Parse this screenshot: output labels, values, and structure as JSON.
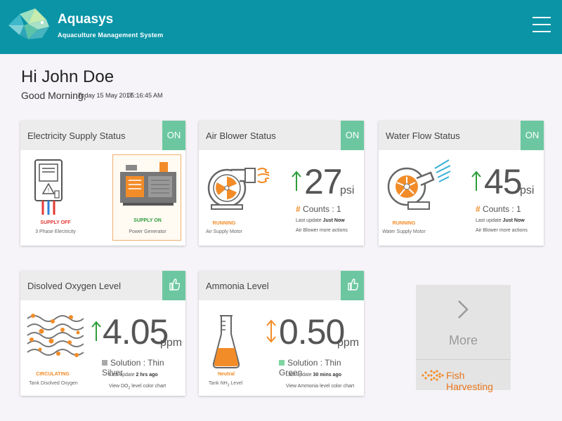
{
  "app": {
    "name": "Aquasys",
    "subtitle": "Aquaculture Management System"
  },
  "greeting": {
    "hello": "Hi John Doe",
    "good": "Good Morning,",
    "date": "Today 15 May 2017",
    "time": "05:16:45 AM"
  },
  "electricity": {
    "title": "Electricity Supply Status",
    "badge": "ON",
    "left_state": "SUPPLY OFF",
    "left_label": "3 Phase Electricity",
    "right_state": "SUPPLY ON",
    "right_label": "Power Generator"
  },
  "air_blower": {
    "title": "Air Blower Status",
    "badge": "ON",
    "value": "27",
    "unit": "psi",
    "counts": "Counts : 1",
    "last_update_label": "Last update",
    "last_update": "Just Now",
    "more": "Air Blower more actions",
    "state": "RUNNING",
    "label": "Air Supply Motor"
  },
  "water_flow": {
    "title": "Water Flow Status",
    "badge": "ON",
    "value": "45",
    "unit": "psi",
    "counts": "Counts : 1",
    "last_update_label": "Last update",
    "last_update": "Just Now",
    "more": "Air Blower more actions",
    "state": "RUNNING",
    "label": "Water Supply Motor"
  },
  "oxygen": {
    "title": "Disolved Oxygen Level",
    "value": "4.05",
    "unit": "ppm",
    "solution": "Solution : Thin Silver",
    "last_update_label": "Last update",
    "last_update": "2 hrs ago",
    "chart_link_pre": "View DO",
    "chart_link_sub": "2",
    "chart_link_post": " level color chart",
    "state": "CIRCULATING",
    "label": "Tank Disolved Oxygen",
    "solution_color": "#aaaaaa"
  },
  "ammonia": {
    "title": "Ammonia Level",
    "value": "0.50",
    "unit": "ppm",
    "solution": "Solution : Thin Green",
    "last_update_label": "Last update",
    "last_update": "30 mins ago",
    "chart_link": "View Ammonia level color chart",
    "state": "Neutral",
    "label_pre": "Tank NH",
    "label_sub": "3",
    "label_post": " Level",
    "solution_color": "#7fd4a0"
  },
  "more": {
    "label": "More",
    "harvest": "Fish Harvesting"
  },
  "colors": {
    "header": "#0a94a6",
    "badge": "#6cc7a0",
    "orange": "#f28c28",
    "red": "#e53935",
    "green": "#2e9d3a"
  }
}
